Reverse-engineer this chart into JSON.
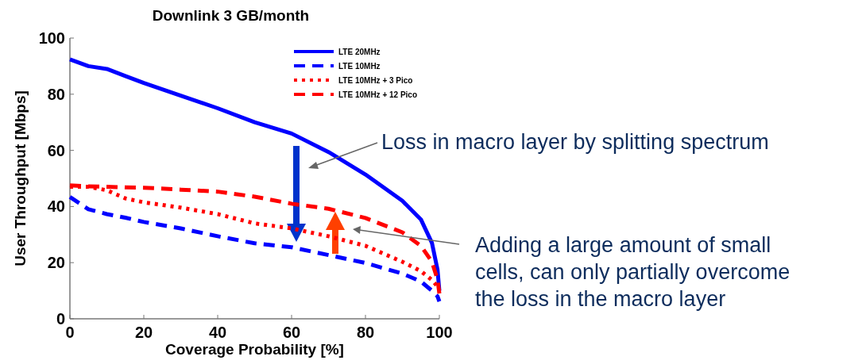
{
  "chart_data": {
    "type": "line",
    "title": "Downlink 3 GB/month",
    "xlabel": "Coverage Probability [%]",
    "ylabel": "User Throughput [Mbps]",
    "xlim": [
      0,
      100
    ],
    "ylim": [
      0,
      100
    ],
    "xticks": [
      0,
      20,
      40,
      60,
      80,
      100
    ],
    "yticks": [
      0,
      20,
      40,
      60,
      80,
      100
    ],
    "grid": false,
    "legend": "top right",
    "x": [
      0,
      5,
      10,
      15,
      20,
      30,
      40,
      50,
      60,
      70,
      80,
      90,
      95,
      98,
      99.5,
      100
    ],
    "series": [
      {
        "name": "LTE 20MHz",
        "color": "#0000ff",
        "line_style": "solid",
        "values": [
          92.4,
          90,
          89,
          86.5,
          84,
          79.5,
          75,
          70,
          66,
          59.4,
          51.4,
          42,
          35.4,
          27,
          17.5,
          10
        ]
      },
      {
        "name": "LTE 10MHz",
        "color": "#0000ff",
        "line_style": "dashed",
        "values": [
          43.4,
          39,
          37.3,
          36,
          34.5,
          32.2,
          29.4,
          26.9,
          25.5,
          22.7,
          19.9,
          16.1,
          13.3,
          10,
          8,
          6.2
        ]
      },
      {
        "name": "LTE 10MHz + 3 Pico",
        "color": "#ff0000",
        "line_style": "dotted",
        "values": [
          47,
          47,
          45.8,
          42.9,
          41.5,
          39.6,
          37.3,
          34,
          32.2,
          29.4,
          26,
          20.3,
          17,
          13.8,
          11.5,
          10
        ]
      },
      {
        "name": "LTE 10MHz + 12 Pico",
        "color": "#ff0000",
        "line_style": "dashed",
        "values": [
          47.5,
          47.2,
          47,
          46.8,
          46.7,
          46,
          45.3,
          43.5,
          41,
          39.2,
          35.9,
          30.8,
          26,
          20.3,
          14,
          9
        ]
      }
    ],
    "annotations": [
      "Loss in macro layer by splitting spectrum",
      "Adding a large amount of small cells, can only partially overcome the loss in the macro layer"
    ]
  }
}
